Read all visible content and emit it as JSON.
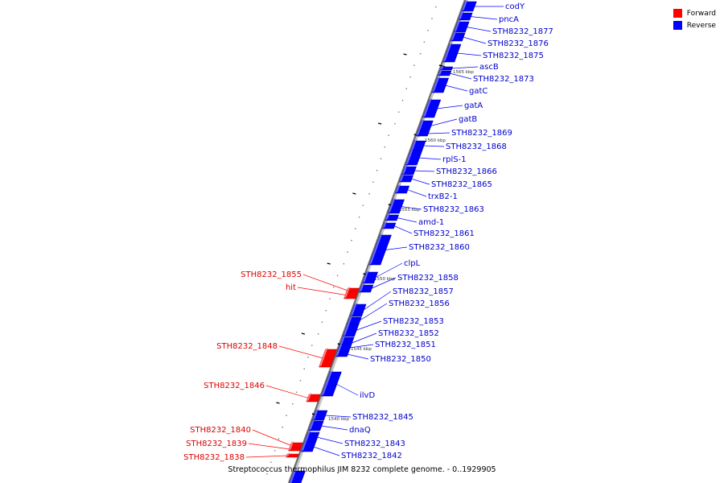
{
  "legend": {
    "forward_label": "Forward",
    "reverse_label": "Reverse",
    "forward_color": "#ff0000",
    "reverse_color": "#0000ff"
  },
  "caption": "Streptococcus thermophilus JIM 8232 complete genome. - 0..1929905",
  "tick_labels": [
    "1565 kbp",
    "1560 kbp",
    "1555 kbp",
    "1550 kbp",
    "1545 kbp",
    "1540 kbp"
  ],
  "reverse_genes": [
    "codY",
    "pncA",
    "STH8232_1877",
    "STH8232_1876",
    "STH8232_1875",
    "ascB",
    "STH8232_1873",
    "gatC",
    "gatA",
    "gatB",
    "STH8232_1869",
    "STH8232_1868",
    "rplS-1",
    "STH8232_1866",
    "STH8232_1865",
    "trxB2-1",
    "STH8232_1863",
    "amd-1",
    "STH8232_1861",
    "STH8232_1860",
    "clpL",
    "STH8232_1858",
    "STH8232_1857",
    "STH8232_1856",
    "STH8232_1853",
    "STH8232_1852",
    "STH8232_1851",
    "STH8232_1850",
    "ilvD",
    "STH8232_1845",
    "dnaQ",
    "STH8232_1843",
    "STH8232_1842"
  ],
  "forward_genes": [
    "STH8232_1855",
    "hit",
    "STH8232_1848",
    "STH8232_1846",
    "STH8232_1840",
    "STH8232_1839",
    "STH8232_1838"
  ]
}
